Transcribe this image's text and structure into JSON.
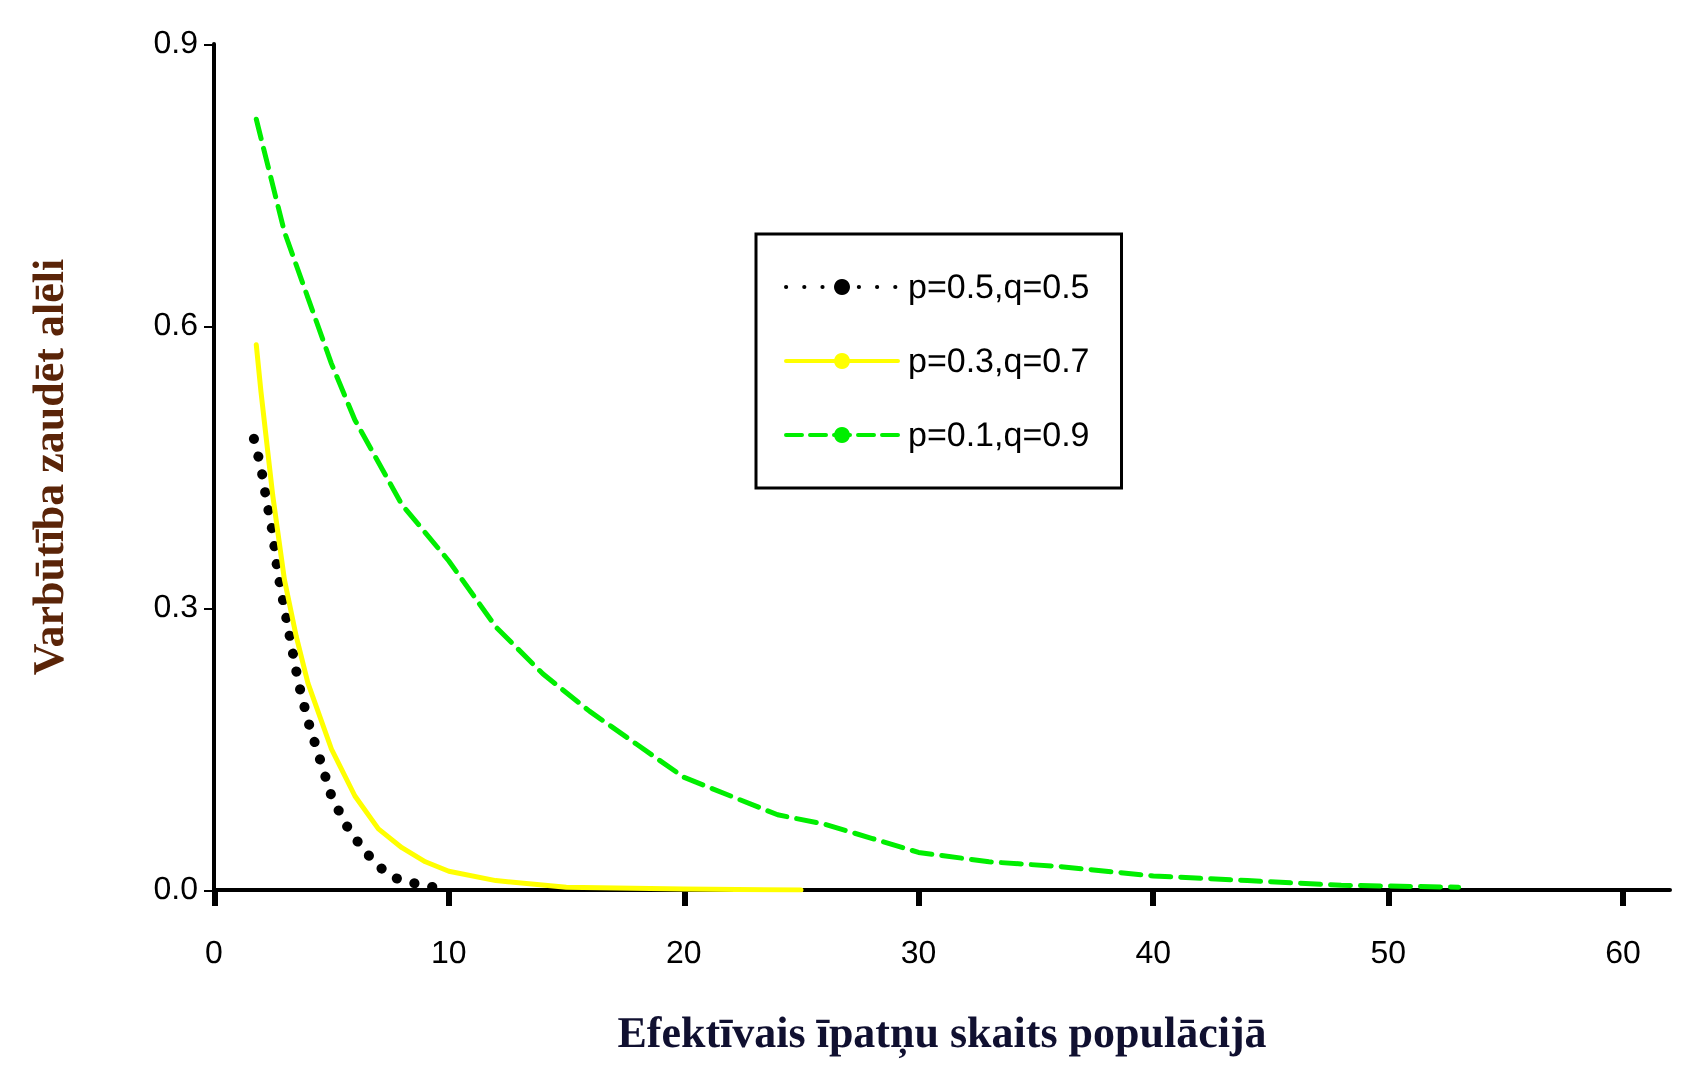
{
  "chart_data": {
    "type": "line",
    "xlabel": "Efektīvais īpatņu skaits populācijā",
    "ylabel": "Varbūtība zaudēt alēli",
    "xlim": [
      0,
      62
    ],
    "ylim": [
      0,
      0.9
    ],
    "xticks": [
      0,
      10,
      20,
      30,
      40,
      50,
      60
    ],
    "yticks": [
      {
        "value": 0,
        "label": "0.0"
      },
      {
        "value": 0.3,
        "label": "0.3"
      },
      {
        "value": 0.6,
        "label": "0.6"
      },
      {
        "value": 0.9,
        "label": "0.9"
      }
    ],
    "grid": false,
    "legend": "top right",
    "marker": "none",
    "series": [
      {
        "name": "p=0.5,q=0.5",
        "color": "#000000",
        "line_style": "dotted",
        "x": [
          1.7,
          2,
          2.2,
          2.5,
          2.7,
          3,
          3.3,
          3.6,
          4,
          4.5,
          5,
          5.6,
          6.3,
          7,
          7.8,
          8.7,
          10
        ],
        "values": [
          0.48,
          0.45,
          0.42,
          0.38,
          0.34,
          0.3,
          0.26,
          0.22,
          0.18,
          0.14,
          0.1,
          0.07,
          0.045,
          0.025,
          0.012,
          0.006,
          0
        ]
      },
      {
        "name": "p=0.3,q=0.7",
        "color": "#ffff00",
        "line_style": "solid",
        "x": [
          1.8,
          2,
          2.5,
          3,
          3.5,
          4,
          5,
          6,
          7,
          8,
          9,
          10,
          12,
          15,
          20,
          25
        ],
        "values": [
          0.58,
          0.53,
          0.42,
          0.33,
          0.27,
          0.22,
          0.15,
          0.1,
          0.065,
          0.045,
          0.03,
          0.02,
          0.01,
          0.003,
          0.001,
          0
        ]
      },
      {
        "name": "p=0.1,q=0.9",
        "color": "#00ee00",
        "line_style": "dashed",
        "x": [
          1.8,
          2.5,
          3,
          4,
          5,
          6,
          8,
          10,
          12,
          14,
          16,
          18,
          20,
          22,
          24,
          26,
          28,
          30,
          33,
          36,
          40,
          44,
          48,
          53
        ],
        "values": [
          0.82,
          0.75,
          0.7,
          0.63,
          0.56,
          0.5,
          0.41,
          0.35,
          0.28,
          0.23,
          0.19,
          0.155,
          0.12,
          0.1,
          0.08,
          0.07,
          0.055,
          0.04,
          0.03,
          0.025,
          0.015,
          0.01,
          0.005,
          0.003
        ]
      }
    ]
  }
}
